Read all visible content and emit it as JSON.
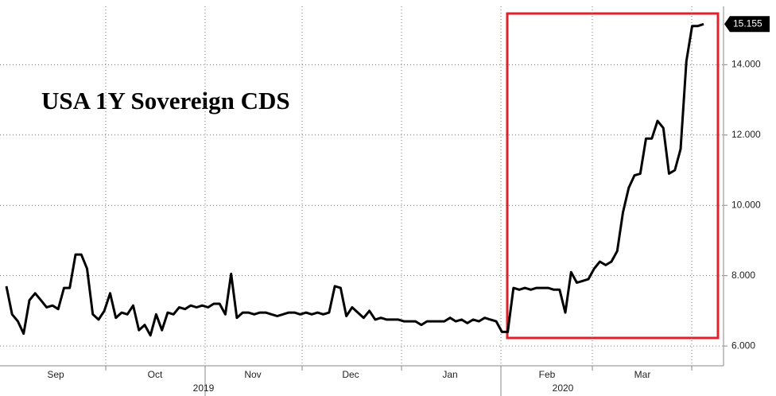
{
  "chart_data": {
    "type": "line",
    "title": "USA 1Y Sovereign CDS",
    "series": [
      {
        "color": "#000000",
        "values": [
          7.7,
          6.9,
          6.7,
          6.35,
          7.3,
          7.5,
          7.3,
          7.1,
          7.15,
          7.05,
          7.65,
          7.65,
          8.6,
          8.6,
          8.2,
          6.9,
          6.75,
          7.0,
          7.5,
          6.8,
          6.95,
          6.9,
          7.15,
          6.45,
          6.6,
          6.3,
          6.9,
          6.45,
          6.95,
          6.9,
          7.1,
          7.05,
          7.15,
          7.1,
          7.15,
          7.1,
          7.2,
          7.2,
          6.9,
          8.05,
          6.8,
          6.95,
          6.95,
          6.9,
          6.95,
          6.95,
          6.9,
          6.85,
          6.9,
          6.95,
          6.95,
          6.9,
          6.95,
          6.9,
          6.95,
          6.9,
          6.95,
          7.7,
          7.65,
          6.85,
          7.1,
          6.95,
          6.8,
          7.0,
          6.75,
          6.8,
          6.75,
          6.75,
          6.75,
          6.7,
          6.7,
          6.7,
          6.6,
          6.7,
          6.7,
          6.7,
          6.7,
          6.8,
          6.7,
          6.75,
          6.65,
          6.75,
          6.7,
          6.8,
          6.75,
          6.7,
          6.4,
          6.4,
          7.65,
          7.6,
          7.65,
          7.6,
          7.65,
          7.65,
          7.65,
          7.6,
          7.6,
          6.95,
          8.1,
          7.8,
          7.85,
          7.9,
          8.2,
          8.4,
          8.3,
          8.4,
          8.7,
          9.8,
          10.5,
          10.85,
          10.9,
          11.9,
          11.9,
          12.4,
          12.2,
          10.9,
          11.0,
          11.6,
          14.1,
          15.1,
          15.1,
          15.155
        ]
      }
    ],
    "months": [
      "Sep",
      "Oct",
      "Nov",
      "Dec",
      "Jan",
      "Feb",
      "Mar"
    ],
    "years": [
      "2019",
      "2020"
    ],
    "ylim": [
      5.55,
      15.5
    ],
    "yticks": [
      {
        "value": 6,
        "label": "6.000"
      },
      {
        "value": 8,
        "label": "8.000"
      },
      {
        "value": 10,
        "label": "10.000"
      },
      {
        "value": 12,
        "label": "12.000"
      },
      {
        "value": 14,
        "label": "14.000"
      }
    ],
    "grid": true
  }
}
